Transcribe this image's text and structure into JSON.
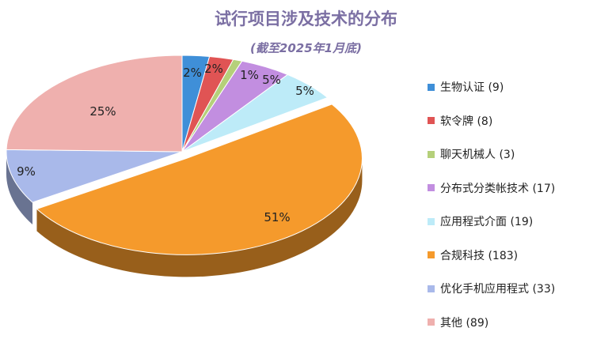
{
  "chart_data": {
    "type": "pie",
    "title": "试行项目涉及技术的分布",
    "subtitle": "(截至2025年1月底)",
    "slices": [
      {
        "label": "生物认证",
        "value": 9,
        "percent_label": "2%",
        "color": "#3f8fd8",
        "legend_text": "生物认证 (9)"
      },
      {
        "label": "软令牌",
        "value": 8,
        "percent_label": "2%",
        "color": "#e05454",
        "legend_text": "软令牌 (8)"
      },
      {
        "label": "聊天机械人",
        "value": 3,
        "percent_label": "1%",
        "color": "#b5d07a",
        "legend_text": "聊天机械人 (3)"
      },
      {
        "label": "分布式分类帐技术",
        "value": 17,
        "percent_label": "5%",
        "color": "#c28ee0",
        "legend_text": "分布式分类帐技术 (17)"
      },
      {
        "label": "应用程式介面",
        "value": 19,
        "percent_label": "5%",
        "color": "#bdebf8",
        "legend_text": "应用程式介面 (19)"
      },
      {
        "label": "合规科技",
        "value": 183,
        "percent_label": "51%",
        "color": "#f59a2c",
        "legend_text": "合规科技 (183)"
      },
      {
        "label": "优化手机应用程式",
        "value": 33,
        "percent_label": "9%",
        "color": "#a9b9ea",
        "legend_text": "优化手机应用程式 (33)"
      },
      {
        "label": "其他",
        "value": 89,
        "percent_label": "25%",
        "color": "#efb0ae",
        "legend_text": "其他 (89)"
      }
    ],
    "legend_position": "right"
  }
}
